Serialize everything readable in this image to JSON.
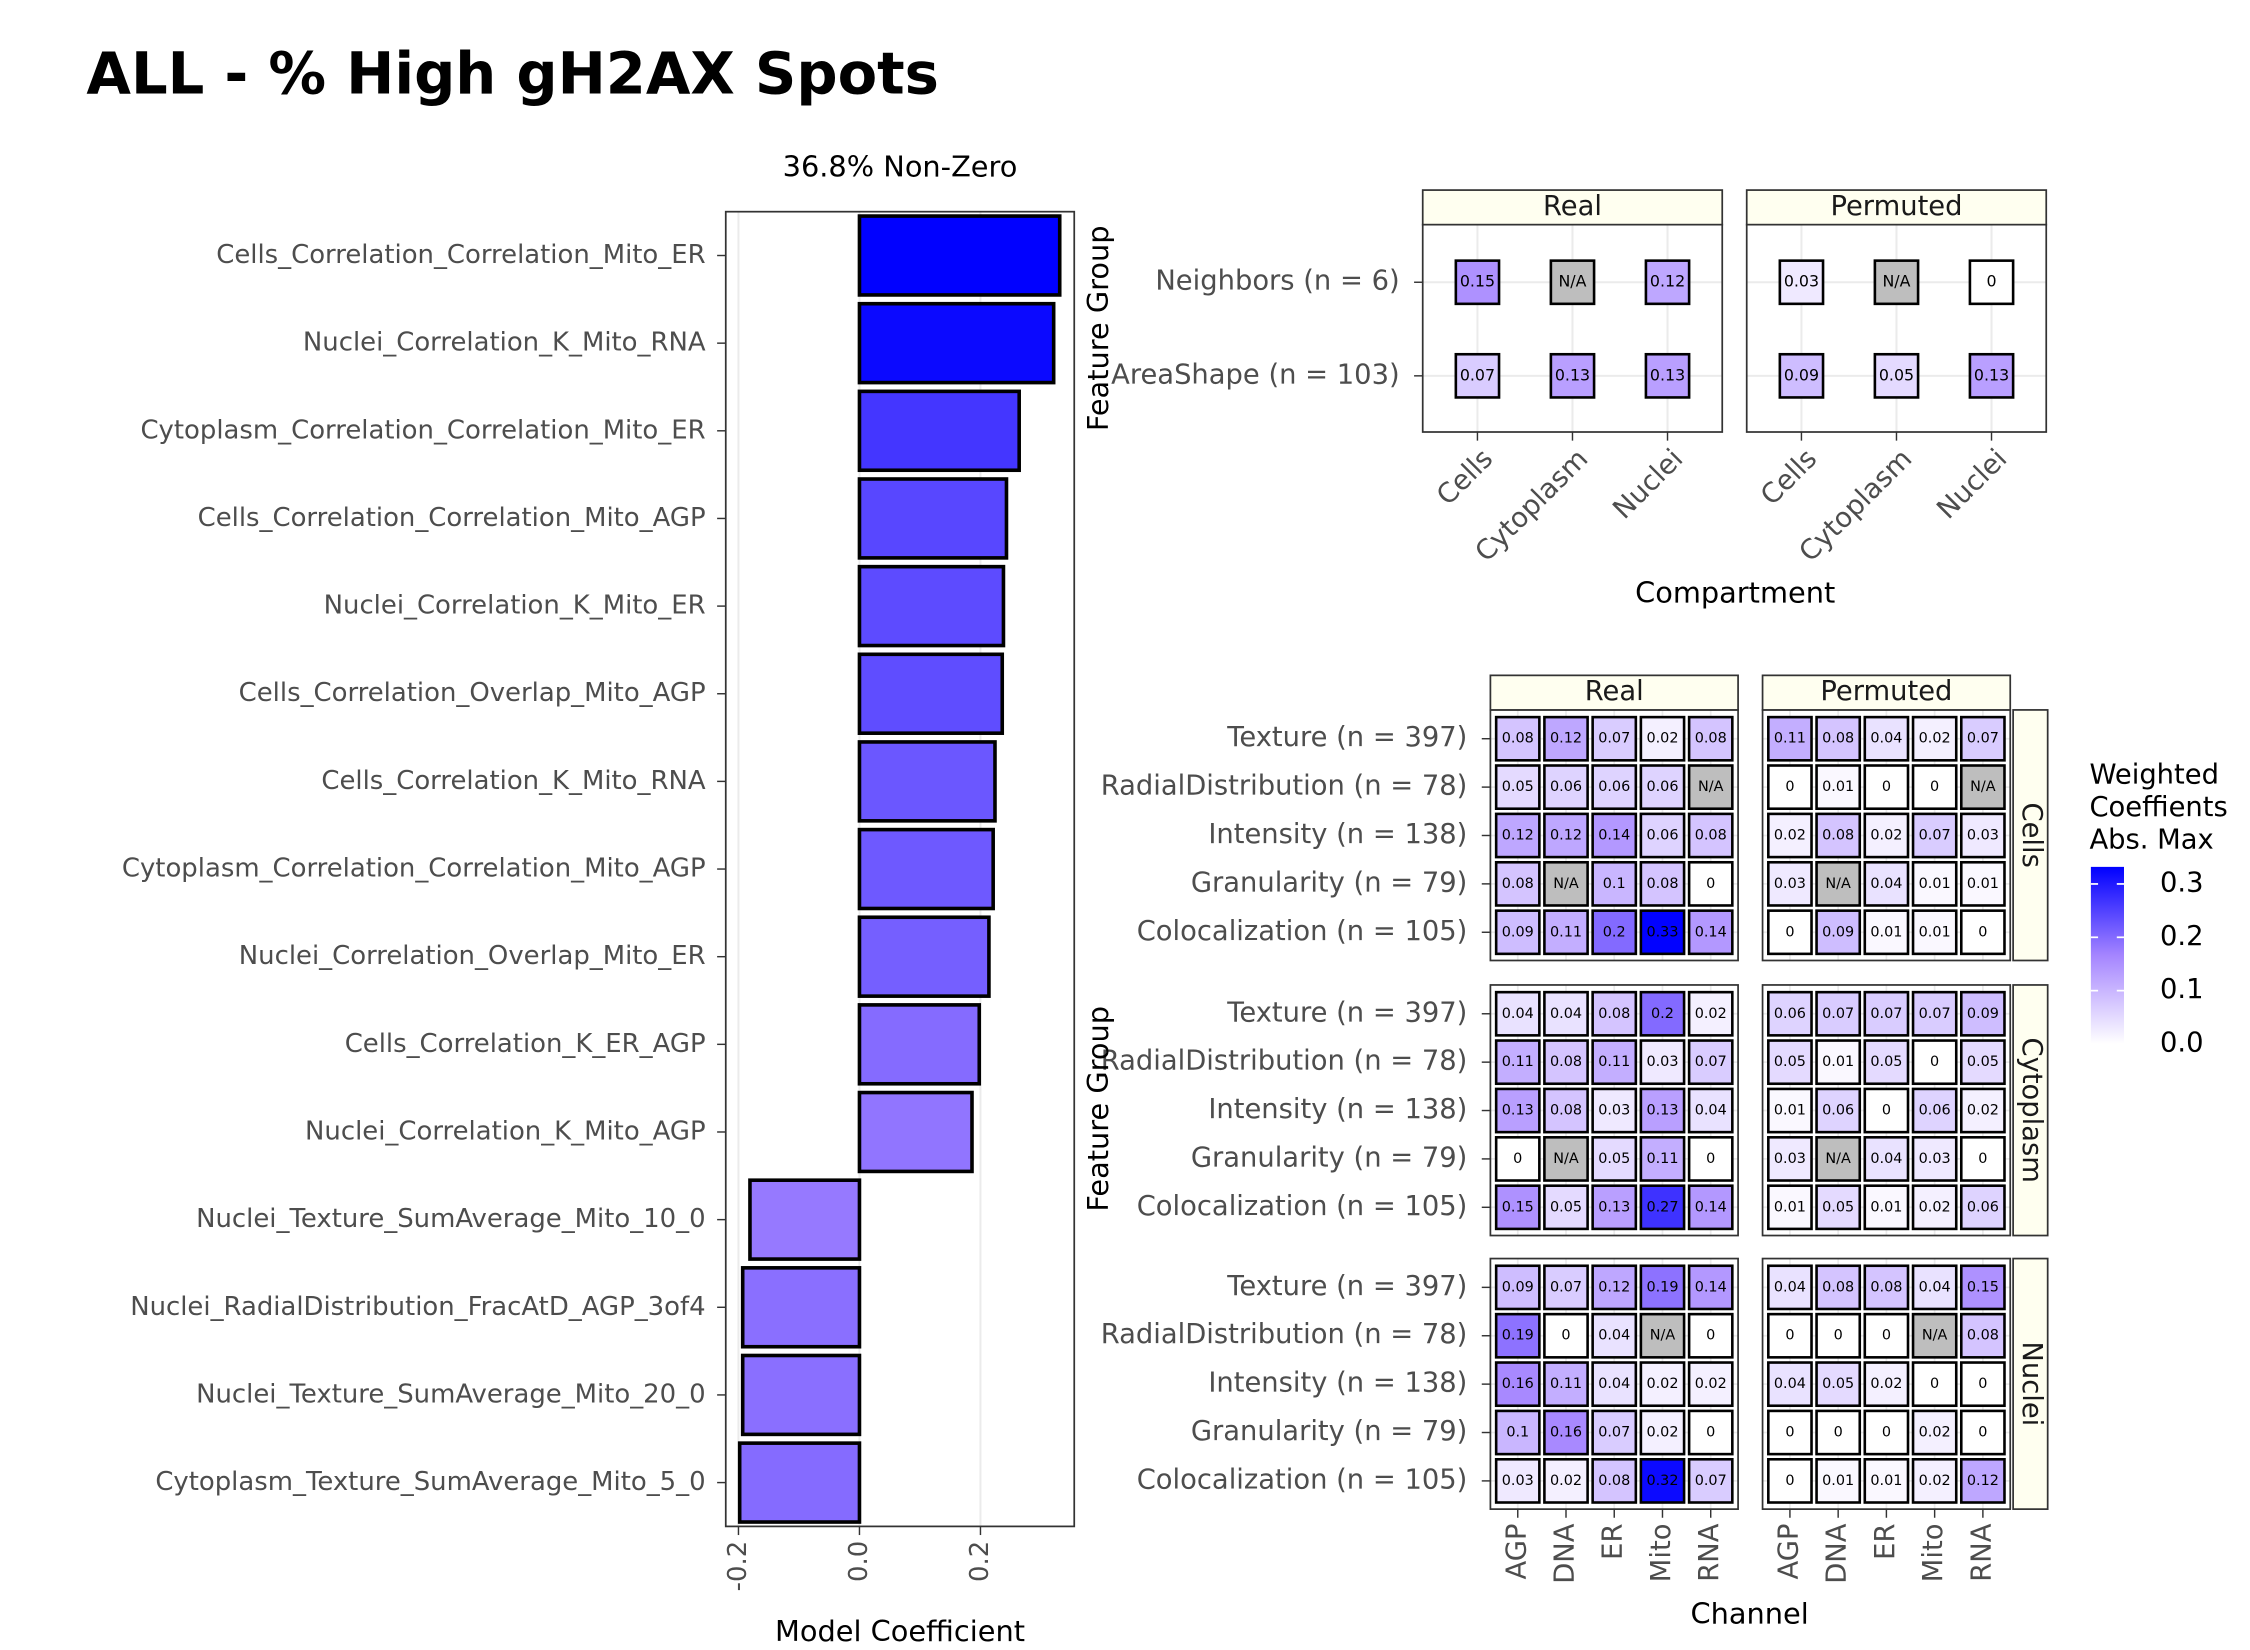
{
  "title": "ALL - % High gH2AX Spots",
  "chart_data": [
    {
      "type": "bar",
      "orientation": "horizontal",
      "title": "36.8% Non-Zero",
      "x_label": "Model Coefficient",
      "categories": [
        "Cells_Correlation_Correlation_Mito_ER",
        "Nuclei_Correlation_K_Mito_RNA",
        "Cytoplasm_Correlation_Correlation_Mito_ER",
        "Cells_Correlation_Correlation_Mito_AGP",
        "Nuclei_Correlation_K_Mito_ER",
        "Cells_Correlation_Overlap_Mito_AGP",
        "Cells_Correlation_K_Mito_RNA",
        "Cytoplasm_Correlation_Correlation_Mito_AGP",
        "Nuclei_Correlation_Overlap_Mito_ER",
        "Cells_Correlation_K_ER_AGP",
        "Nuclei_Correlation_K_Mito_AGP",
        "Nuclei_Texture_SumAverage_Mito_10_0",
        "Nuclei_RadialDistribution_FracAtD_AGP_3of4",
        "Nuclei_Texture_SumAverage_Mito_20_0",
        "Cytoplasm_Texture_SumAverage_Mito_5_0"
      ],
      "values": [
        0.331,
        0.321,
        0.264,
        0.243,
        0.238,
        0.236,
        0.224,
        0.221,
        0.214,
        0.198,
        0.186,
        -0.181,
        -0.193,
        -0.193,
        -0.198
      ],
      "xlim": [
        -0.221,
        0.355
      ],
      "xticks": [
        -0.2,
        {
          "value": 0,
          "label": "0.0"
        },
        0.2
      ],
      "grid": true,
      "bar_edge_color": "#000000"
    },
    {
      "type": "heatmap",
      "y_label": "Feature Group",
      "x_label": "Compartment",
      "col_facets": [
        "Real",
        "Permuted"
      ],
      "rows": [
        "Neighbors (n = 6)",
        "AreaShape (n = 103)"
      ],
      "columns": [
        "Cells",
        "Cytoplasm",
        "Nuclei"
      ],
      "values": [
        [
          [
            0.15,
            null,
            0.12
          ],
          [
            0.07,
            0.13,
            0.13
          ]
        ],
        [
          [
            0.03,
            null,
            0
          ],
          [
            0.09,
            0.05,
            0.13
          ]
        ]
      ],
      "na_label": "N/A",
      "na_color": "#bebebe"
    },
    {
      "type": "faceted_heatmap",
      "y_label": "Feature Group",
      "x_label": "Channel",
      "col_facets": [
        "Real",
        "Permuted"
      ],
      "row_facets": [
        "Cells",
        "Cytoplasm",
        "Nuclei"
      ],
      "rows": [
        "Texture (n = 397)",
        "RadialDistribution (n = 78)",
        "Intensity (n = 138)",
        "Granularity (n = 79)",
        "Colocalization (n = 105)"
      ],
      "columns": [
        "AGP",
        "DNA",
        "ER",
        "Mito",
        "RNA"
      ],
      "values": [
        [
          [
            [
              0.08,
              0.12,
              0.07,
              0.02,
              0.08
            ],
            [
              0.05,
              0.06,
              0.06,
              0.06,
              null
            ],
            [
              0.12,
              0.12,
              0.14,
              0.06,
              0.08
            ],
            [
              0.08,
              null,
              0.1,
              0.08,
              0
            ],
            [
              0.09,
              0.11,
              0.2,
              0.33,
              0.14
            ]
          ],
          [
            [
              0.11,
              0.08,
              0.04,
              0.02,
              0.07
            ],
            [
              0,
              0.01,
              0,
              0,
              null
            ],
            [
              0.02,
              0.08,
              0.02,
              0.07,
              0.03
            ],
            [
              0.03,
              null,
              0.04,
              0.01,
              0.01
            ],
            [
              0,
              0.09,
              0.01,
              0.01,
              0
            ]
          ]
        ],
        [
          [
            [
              0.04,
              0.04,
              0.08,
              0.2,
              0.02
            ],
            [
              0.11,
              0.08,
              0.11,
              0.03,
              0.07
            ],
            [
              0.13,
              0.08,
              0.03,
              0.13,
              0.04
            ],
            [
              0,
              null,
              0.05,
              0.11,
              0
            ],
            [
              0.15,
              0.05,
              0.13,
              0.27,
              0.14
            ]
          ],
          [
            [
              0.06,
              0.07,
              0.07,
              0.07,
              0.09
            ],
            [
              0.05,
              0.01,
              0.05,
              0,
              0.05
            ],
            [
              0.01,
              0.06,
              0,
              0.06,
              0.02
            ],
            [
              0.03,
              null,
              0.04,
              0.03,
              0
            ],
            [
              0.01,
              0.05,
              0.01,
              0.02,
              0.06
            ]
          ]
        ],
        [
          [
            [
              0.09,
              0.07,
              0.12,
              0.19,
              0.14
            ],
            [
              0.19,
              0,
              0.04,
              null,
              0
            ],
            [
              0.16,
              0.11,
              0.04,
              0.02,
              0.02
            ],
            [
              0.1,
              0.16,
              0.07,
              0.02,
              0
            ],
            [
              0.03,
              0.02,
              0.08,
              0.32,
              0.07
            ]
          ],
          [
            [
              0.04,
              0.08,
              0.08,
              0.04,
              0.15
            ],
            [
              0,
              0,
              0,
              null,
              0.08
            ],
            [
              0.04,
              0.05,
              0.02,
              0,
              0
            ],
            [
              0,
              0,
              0,
              0.02,
              0
            ],
            [
              0,
              0.01,
              0.01,
              0.02,
              0.12
            ]
          ]
        ]
      ],
      "na_label": "N/A",
      "na_color": "#bebebe"
    }
  ],
  "color_scale": {
    "title": [
      "Weighted",
      "Coeffients",
      "Abs. Max"
    ],
    "colors": [
      "#ffffff",
      "#a585ff",
      "#0000ff"
    ],
    "lim": [
      0,
      0.332
    ],
    "ticks": [
      {
        "value": 0,
        "label": "0.0"
      },
      0.1,
      0.2,
      0.3
    ]
  }
}
